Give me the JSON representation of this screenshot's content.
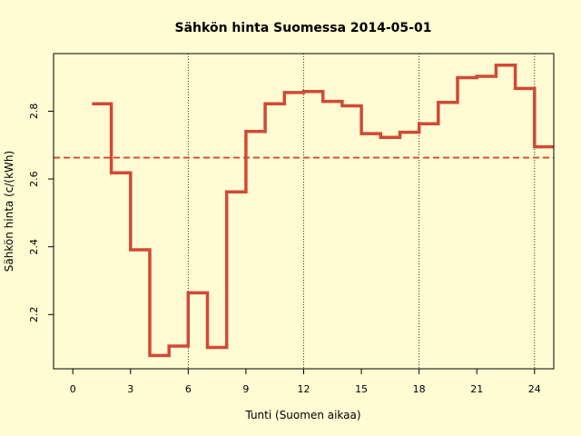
{
  "chart_data": {
    "type": "line",
    "step": true,
    "title": "Sähkön hinta Suomessa 2014-05-01",
    "xlabel": "Tunti (Suomen aikaa)",
    "ylabel": "Sähkön hinta (c/(kWh)",
    "xlim": [
      -1,
      25
    ],
    "ylim": [
      2.04,
      2.97
    ],
    "x_ticks": [
      0,
      3,
      6,
      9,
      12,
      15,
      18,
      21,
      24
    ],
    "y_ticks": [
      2.2,
      2.4,
      2.6,
      2.8
    ],
    "vertical_gridlines": [
      6,
      12,
      18,
      24
    ],
    "mean_line": 2.663,
    "colors": {
      "line": "#d14a34",
      "mean": "#d14a34",
      "background": "#fffbd3"
    },
    "series": [
      {
        "x": [
          1,
          2,
          3,
          4,
          5,
          6,
          7,
          8,
          9,
          10,
          11,
          12,
          13,
          14,
          15,
          16,
          17,
          18,
          19,
          20,
          21,
          22,
          23,
          24
        ],
        "values": [
          2.822,
          2.618,
          2.391,
          2.079,
          2.107,
          2.264,
          2.103,
          2.562,
          2.74,
          2.822,
          2.855,
          2.858,
          2.829,
          2.816,
          2.734,
          2.723,
          2.738,
          2.763,
          2.826,
          2.899,
          2.903,
          2.936,
          2.867,
          2.695
        ]
      }
    ]
  }
}
